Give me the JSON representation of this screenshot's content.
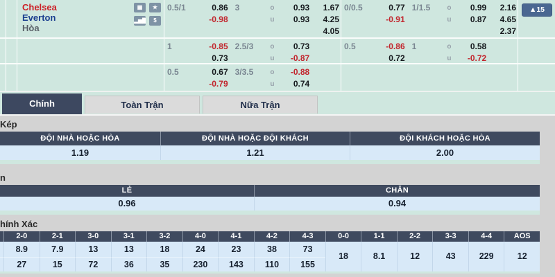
{
  "colors": {
    "teal_bg": "#cfe7df",
    "slate_header": "#3f4a5f",
    "row_blue": "#d8e9f8",
    "negative_red": "#c2242c",
    "home_red": "#cc2127",
    "away_blue": "#1a3e8f",
    "page_gray": "#d3d3d3",
    "badge_blue": "#4a6791"
  },
  "labels": {
    "over": "o",
    "under": "u"
  },
  "match": {
    "home": "Chelsea",
    "away": "Everton",
    "draw": "Hòa",
    "icons": [
      {
        "name": "livescore-icon",
        "glyph": "▦"
      },
      {
        "name": "favorite-star-icon",
        "glyph": "★"
      },
      {
        "name": "stats-chart-icon",
        "glyph": "▂▅▇"
      },
      {
        "name": "money-icon",
        "glyph": "$"
      }
    ],
    "update_badge": "▲15",
    "blocks": [
      {
        "full": {
          "hcap": "0.5/1",
          "home_odds": "0.86",
          "away_odds": "-0.98",
          "ou_line": "3",
          "over": "0.93",
          "under": "0.93",
          "x12_home": "1.67",
          "x12_away": "4.25",
          "x12_draw": "4.05"
        },
        "half": {
          "hcap": "0/0.5",
          "home_odds": "0.77",
          "away_odds": "-0.91",
          "ou_line": "1/1.5",
          "over": "0.99",
          "under": "0.87",
          "x12_home": "2.16",
          "x12_away": "4.65",
          "x12_draw": "2.37"
        }
      },
      {
        "full": {
          "hcap": "1",
          "home_odds": "-0.85",
          "away_odds": "0.73",
          "ou_line": "2.5/3",
          "over": "0.73",
          "under": "-0.87"
        },
        "half": {
          "hcap": "0.5",
          "home_odds": "-0.86",
          "away_odds": "0.72",
          "ou_line": "1",
          "over": "0.58",
          "under": "-0.72"
        }
      },
      {
        "full": {
          "hcap": "0.5",
          "home_odds": "0.67",
          "away_odds": "-0.79",
          "ou_line": "3/3.5",
          "over": "-0.88",
          "under": "0.74"
        }
      }
    ]
  },
  "tabs": [
    {
      "label": "Chính"
    },
    {
      "label": "Toàn Trận"
    },
    {
      "label": "Nữa Trận"
    }
  ],
  "sections": {
    "double_chance": {
      "title": "Kép",
      "headers": [
        "ĐỘI NHÀ HOẶC HÒA",
        "ĐỘI NHÀ HOẶC ĐỘI KHÁCH",
        "ĐỘI KHÁCH HOẶC HÒA"
      ],
      "values": [
        "1.19",
        "1.21",
        "2.00"
      ]
    },
    "odd_even": {
      "title": "n",
      "headers": [
        "LẺ",
        "CHẴN"
      ],
      "values": [
        "0.96",
        "0.94"
      ]
    },
    "correct_score": {
      "title": "hính Xác",
      "columns": [
        "2-0",
        "2-1",
        "3-0",
        "3-1",
        "3-2",
        "4-0",
        "4-1",
        "4-2",
        "4-3",
        "0-0",
        "1-1",
        "2-2",
        "3-3",
        "4-4",
        "AOS"
      ],
      "row1": [
        "8.9",
        "7.9",
        "13",
        "13",
        "18",
        "24",
        "23",
        "38",
        "73"
      ],
      "row2": [
        "27",
        "15",
        "72",
        "36",
        "35",
        "230",
        "143",
        "110",
        "155"
      ],
      "merged": [
        "18",
        "8.1",
        "12",
        "43",
        "229",
        "12"
      ]
    }
  }
}
